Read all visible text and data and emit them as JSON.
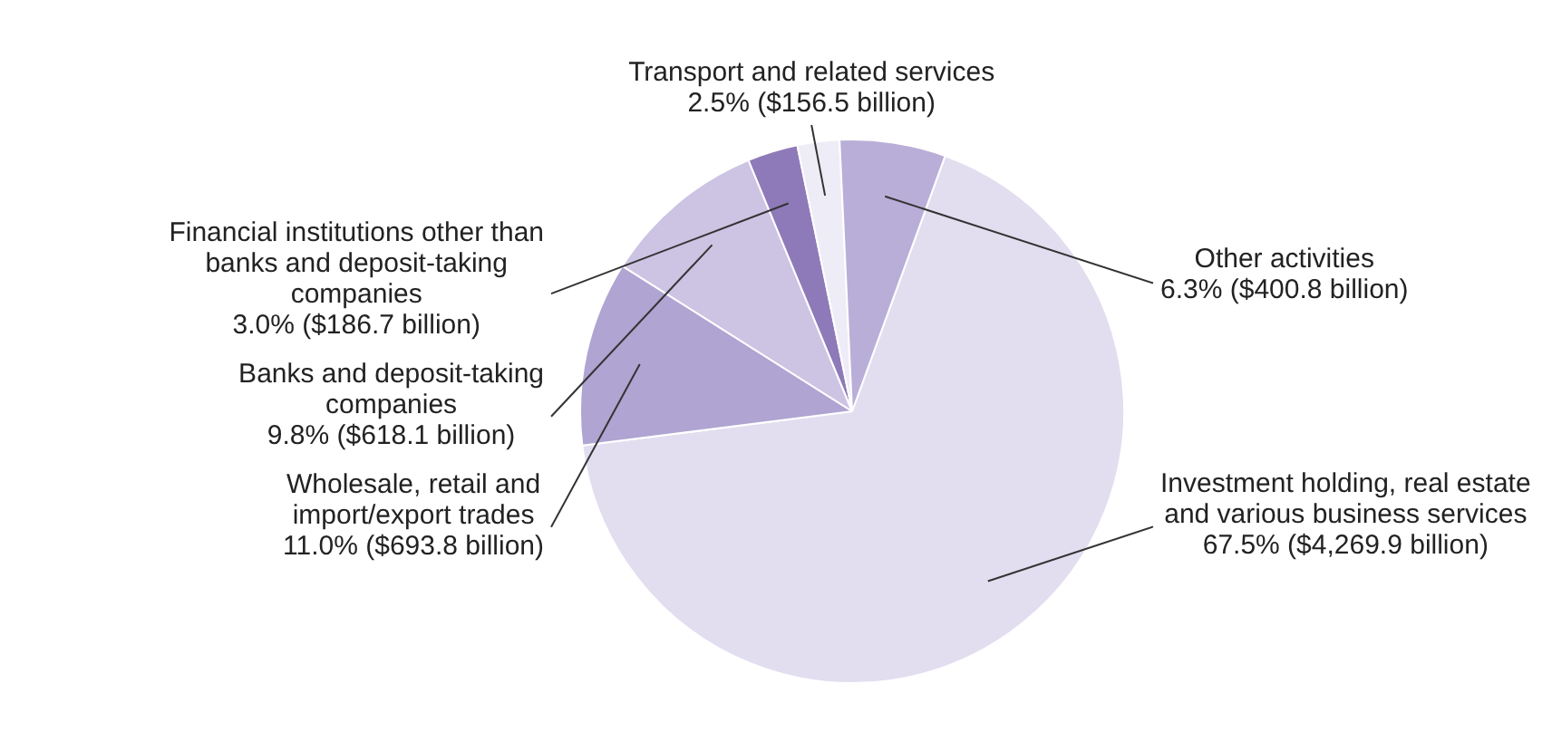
{
  "chart_data": {
    "type": "pie",
    "categories": [
      "Investment holding, real estate and various business services",
      "Wholesale, retail and import/export trades",
      "Banks and deposit-taking companies",
      "Financial institutions other than banks and deposit-taking companies",
      "Transport and related services",
      "Other activities"
    ],
    "values": [
      67.5,
      11.0,
      9.8,
      3.0,
      2.5,
      6.3
    ],
    "colors": [
      "#e2def0",
      "#b0a4d2",
      "#cdc4e4",
      "#8e7ab8",
      "#eeecf6",
      "#b9aed8"
    ],
    "value_labels": [
      "67.5% ($4,269.9 billion)",
      "11.0% ($693.8 billion)",
      "9.8% ($618.1 billion)",
      "3.0% ($186.7 billion)",
      "2.5% ($156.5 billion)",
      "6.3% ($400.8 billion)"
    ]
  }
}
